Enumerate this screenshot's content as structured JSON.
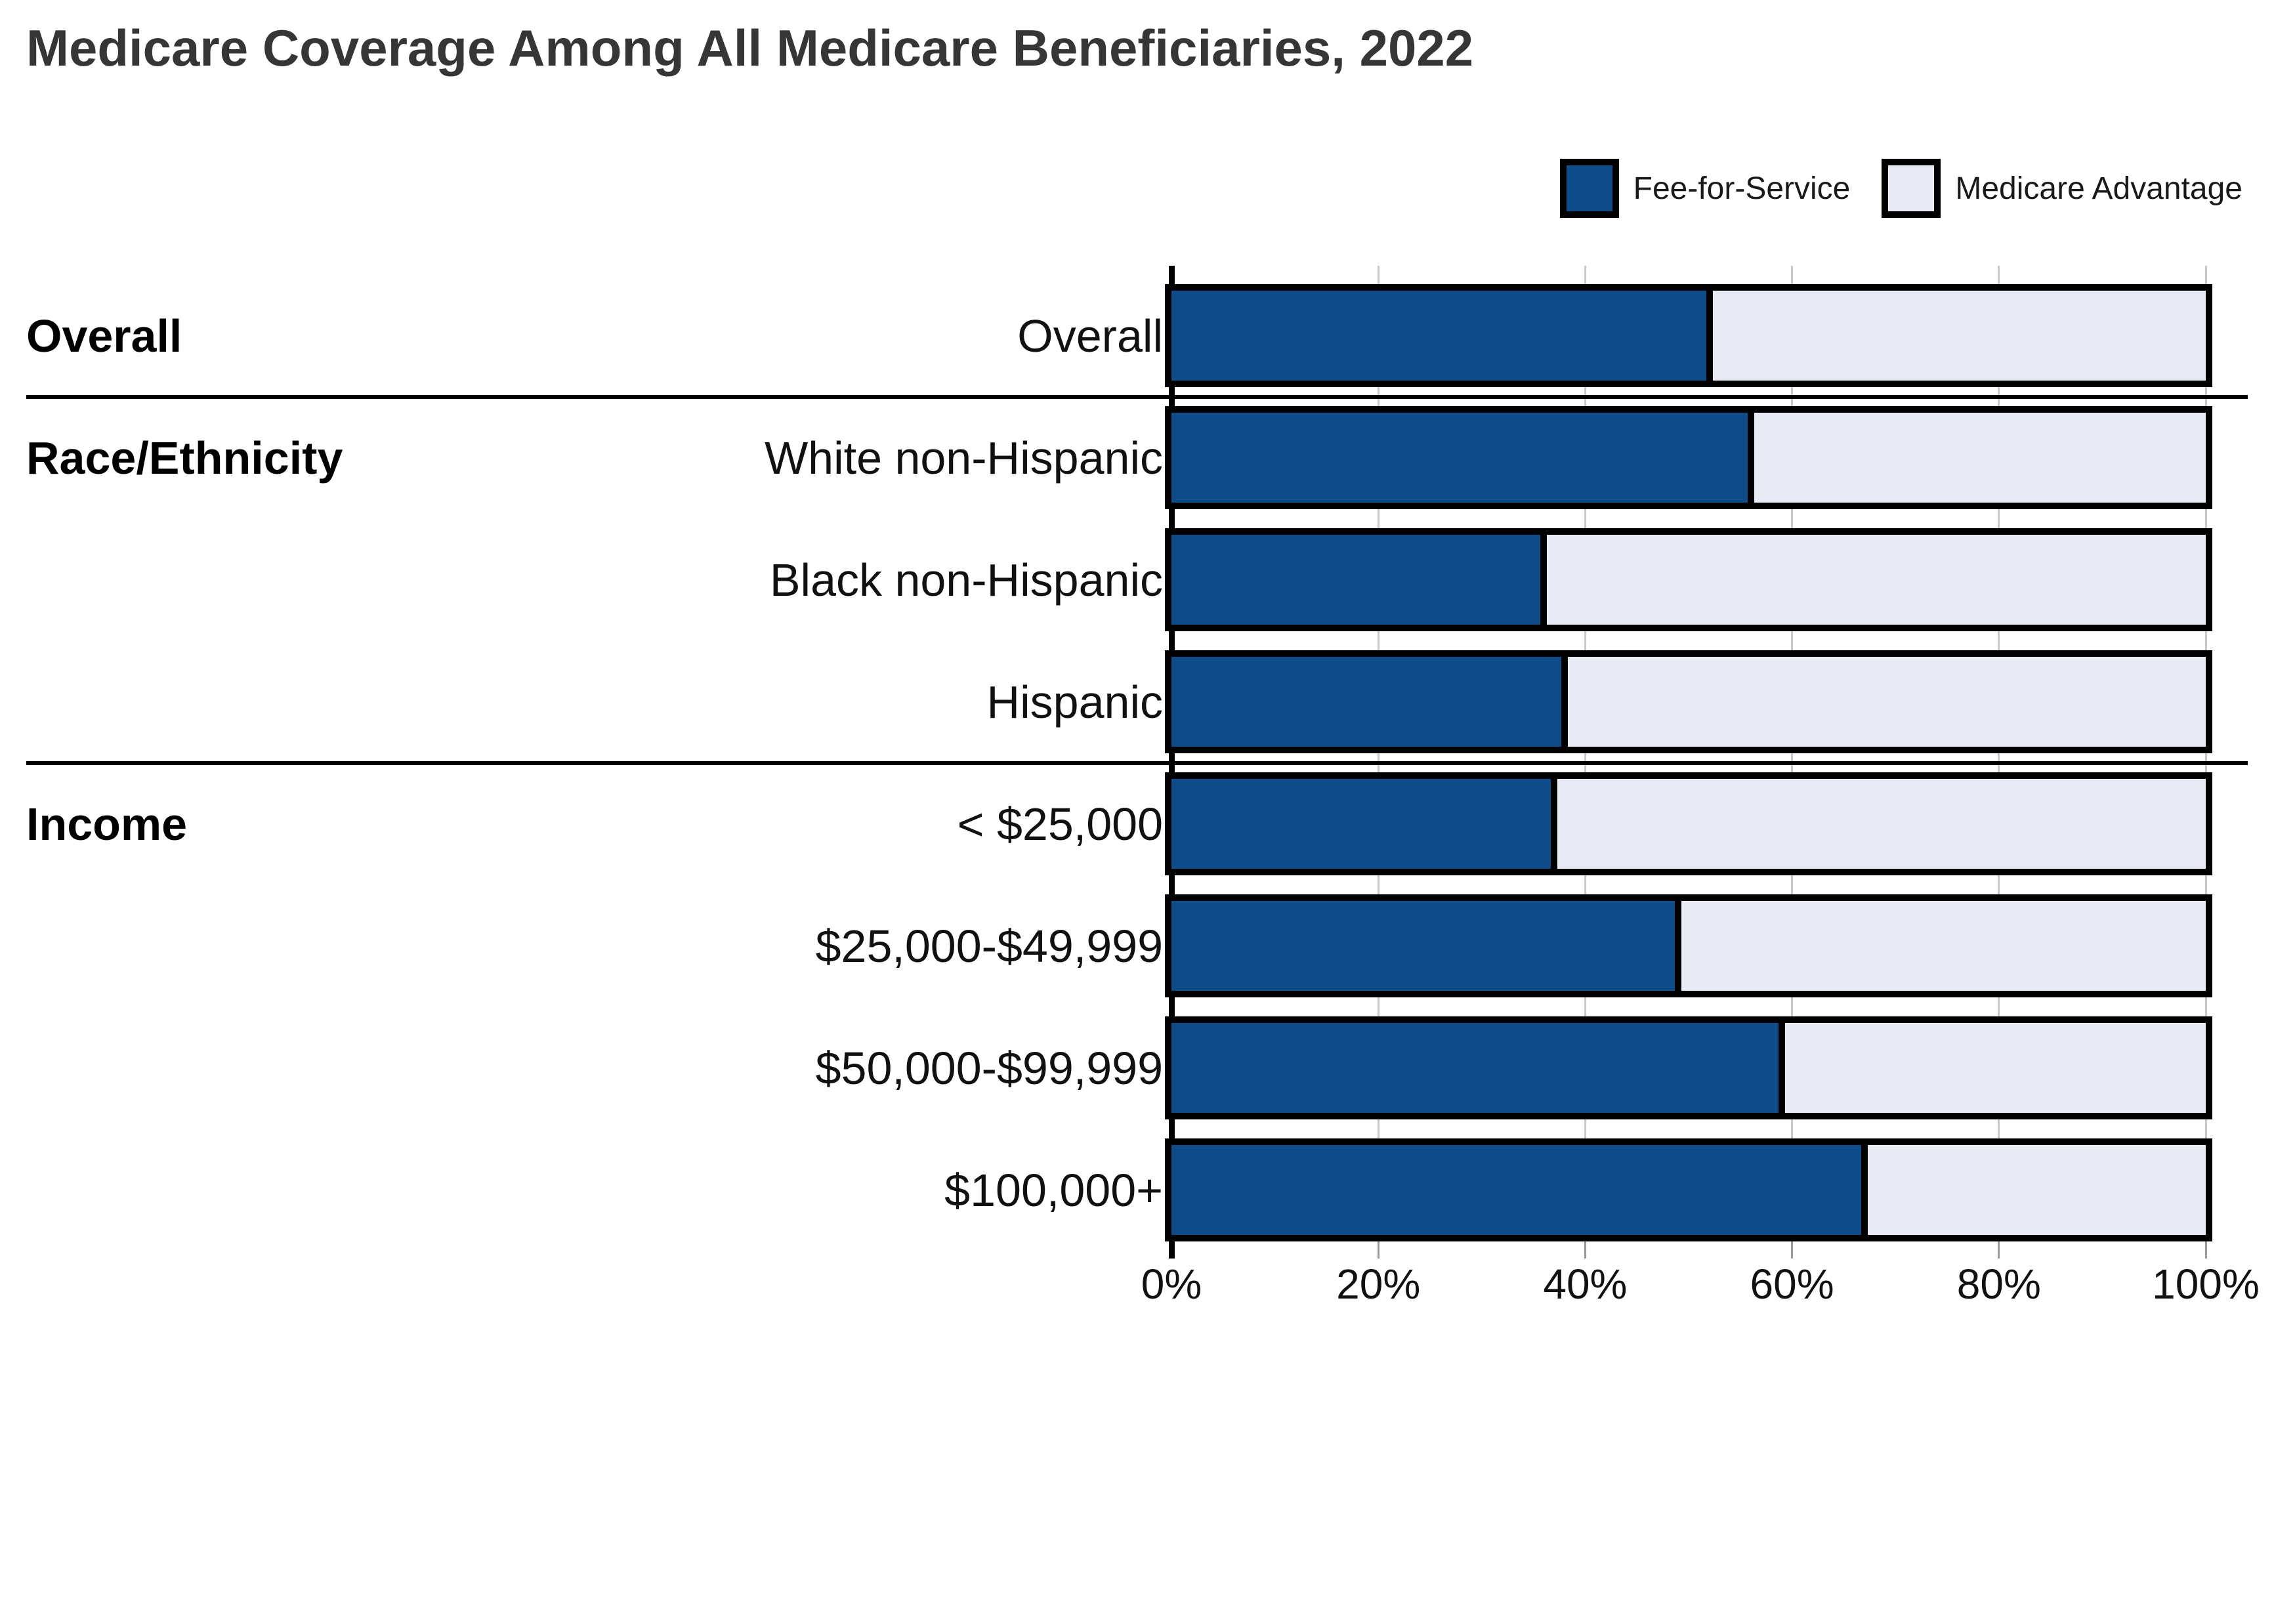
{
  "title": "Medicare Coverage Among All Medicare Beneficiaries, 2022",
  "legend": {
    "items": [
      {
        "label": "Fee-for-Service",
        "color_key": "ffs"
      },
      {
        "label": "Medicare Advantage",
        "color_key": "ma"
      }
    ]
  },
  "colors": {
    "ffs": "#0E4C8A",
    "ma": "#E8EBF3",
    "bar_border": "#000000",
    "gridline": "#C9C9C9",
    "title_text": "#363636",
    "text": "#111111"
  },
  "x_axis": {
    "tick_labels": [
      "0%",
      "20%",
      "40%",
      "60%",
      "80%",
      "100%"
    ],
    "tick_values": [
      0,
      20,
      40,
      60,
      80,
      100
    ],
    "min": 0,
    "max": 100,
    "unit": "%"
  },
  "groups": [
    {
      "label": "Overall",
      "rows": [
        {
          "label": "Overall",
          "ffs": 52,
          "ma": 48
        }
      ]
    },
    {
      "label": "Race/Ethnicity",
      "rows": [
        {
          "label": "White non-Hispanic",
          "ffs": 56,
          "ma": 44
        },
        {
          "label": "Black non-Hispanic",
          "ffs": 36,
          "ma": 64
        },
        {
          "label": "Hispanic",
          "ffs": 38,
          "ma": 62
        }
      ]
    },
    {
      "label": "Income",
      "rows": [
        {
          "label": "< $25,000",
          "ffs": 37,
          "ma": 63
        },
        {
          "label": "$25,000-$49,999",
          "ffs": 49,
          "ma": 51
        },
        {
          "label": "$50,000-$99,999",
          "ffs": 59,
          "ma": 41
        },
        {
          "label": "$100,000+",
          "ffs": 67,
          "ma": 33
        }
      ]
    }
  ],
  "chart_data": {
    "type": "bar",
    "orientation": "horizontal",
    "stacked": true,
    "title": "Medicare Coverage Among All Medicare Beneficiaries, 2022",
    "categories": [
      "Overall",
      "White non-Hispanic",
      "Black non-Hispanic",
      "Hispanic",
      "< $25,000",
      "$25,000-$49,999",
      "$50,000-$99,999",
      "$100,000+"
    ],
    "category_groups": [
      "Overall",
      "Race/Ethnicity",
      "Race/Ethnicity",
      "Race/Ethnicity",
      "Income",
      "Income",
      "Income",
      "Income"
    ],
    "series": [
      {
        "name": "Fee-for-Service",
        "color": "#0E4C8A",
        "values": [
          52,
          56,
          36,
          38,
          37,
          49,
          59,
          67
        ]
      },
      {
        "name": "Medicare Advantage",
        "color": "#E8EBF3",
        "values": [
          48,
          44,
          64,
          62,
          63,
          51,
          41,
          33
        ]
      }
    ],
    "xlabel": "",
    "ylabel": "",
    "xlim": [
      0,
      100
    ],
    "x_tick_labels": [
      "0%",
      "20%",
      "40%",
      "60%",
      "80%",
      "100%"
    ],
    "unit": "%",
    "grid": true,
    "legend_position": "top-right"
  }
}
